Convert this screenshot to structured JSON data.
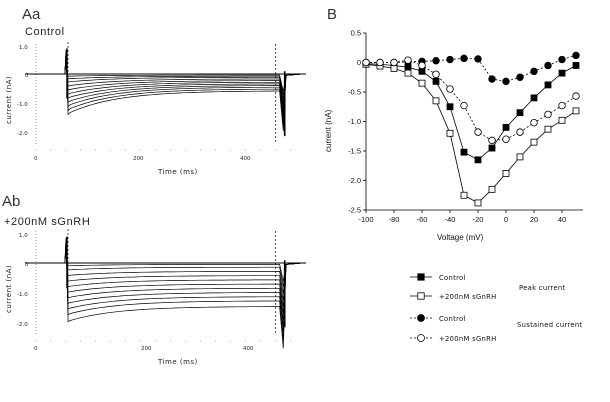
{
  "panels": {
    "aa": {
      "letter": "Aa",
      "title": "Control"
    },
    "ab": {
      "letter": "Ab",
      "title": "+200nM sGnRH"
    },
    "b": {
      "letter": "B"
    }
  },
  "chart_data": [
    {
      "id": "Aa",
      "type": "line",
      "title": "Control",
      "xlabel": "Time (ms)",
      "ylabel": "current (nA)",
      "xlim": [
        0,
        500
      ],
      "ylim": [
        -2.2,
        1.2
      ],
      "x_ticks": [
        "0",
        "200",
        "400"
      ],
      "y_ticks": [
        "1.0",
        "0",
        "-1.0",
        "-2.0"
      ],
      "description_steps": 11,
      "step_on_ms": 58,
      "step_off_ms": 462,
      "series": [
        {
          "peak": -0.08,
          "sustained": -0.04
        },
        {
          "peak": -0.18,
          "sustained": -0.08
        },
        {
          "peak": -0.3,
          "sustained": -0.12
        },
        {
          "peak": -0.45,
          "sustained": -0.18
        },
        {
          "peak": -0.6,
          "sustained": -0.24
        },
        {
          "peak": -0.75,
          "sustained": -0.3
        },
        {
          "peak": -0.9,
          "sustained": -0.36
        },
        {
          "peak": -1.05,
          "sustained": -0.42
        },
        {
          "peak": -1.2,
          "sustained": -0.48
        },
        {
          "peak": -1.35,
          "sustained": -0.55
        },
        {
          "peak": -1.5,
          "sustained": -0.62
        }
      ]
    },
    {
      "id": "Ab",
      "type": "line",
      "title": "+200nM sGnRH",
      "xlabel": "Time (ms)",
      "ylabel": "current (nA)",
      "xlim": [
        0,
        500
      ],
      "ylim": [
        -2.2,
        1.2
      ],
      "x_ticks": [
        "0",
        "200",
        "400"
      ],
      "y_ticks": [
        "1.0",
        "0",
        "-1.0",
        "-2.0"
      ],
      "step_on_ms": 58,
      "step_off_ms": 462,
      "series": [
        {
          "peak": -0.1,
          "sustained": -0.05
        },
        {
          "peak": -0.25,
          "sustained": -0.15
        },
        {
          "peak": -0.45,
          "sustained": -0.3
        },
        {
          "peak": -0.65,
          "sustained": -0.45
        },
        {
          "peak": -0.85,
          "sustained": -0.6
        },
        {
          "peak": -1.05,
          "sustained": -0.75
        },
        {
          "peak": -1.25,
          "sustained": -0.9
        },
        {
          "peak": -1.45,
          "sustained": -1.05
        },
        {
          "peak": -1.65,
          "sustained": -1.2
        },
        {
          "peak": -1.85,
          "sustained": -1.35
        },
        {
          "peak": -2.1,
          "sustained": -1.55
        }
      ]
    },
    {
      "id": "B",
      "type": "line",
      "title": "",
      "xlabel": "Voltage (mV)",
      "ylabel": "current (nA)",
      "xlim": [
        -100,
        55
      ],
      "ylim": [
        -2.5,
        0.5
      ],
      "x_ticks": [
        "-100",
        "-80",
        "-60",
        "-40",
        "-20",
        "0",
        "20",
        "40"
      ],
      "y_ticks": [
        "0.5",
        "0",
        "-0.5",
        "-1.0",
        "-1.5",
        "-2.0",
        "-2.5"
      ],
      "x": [
        -100,
        -90,
        -80,
        -70,
        -60,
        -50,
        -40,
        -30,
        -20,
        -10,
        0,
        10,
        20,
        30,
        40,
        50
      ],
      "series": [
        {
          "name": "Control",
          "group": "Peak current",
          "marker": "square-filled",
          "dashed": false,
          "values": [
            -0.02,
            -0.03,
            -0.05,
            -0.08,
            -0.15,
            -0.32,
            -0.75,
            -1.52,
            -1.65,
            -1.45,
            -1.1,
            -0.85,
            -0.6,
            -0.38,
            -0.18,
            -0.05
          ]
        },
        {
          "name": "+200nM sGnRH",
          "group": "Peak current",
          "marker": "square-open",
          "dashed": false,
          "values": [
            -0.03,
            -0.06,
            -0.1,
            -0.18,
            -0.35,
            -0.65,
            -1.2,
            -2.25,
            -2.38,
            -2.15,
            -1.88,
            -1.6,
            -1.35,
            -1.13,
            -0.98,
            -0.82
          ]
        },
        {
          "name": "Control",
          "group": "Sustained current",
          "marker": "circle-filled",
          "dashed": true,
          "values": [
            0.0,
            0.0,
            0.0,
            0.01,
            0.02,
            0.03,
            0.05,
            0.07,
            0.06,
            -0.28,
            -0.32,
            -0.25,
            -0.15,
            -0.05,
            0.05,
            0.12
          ]
        },
        {
          "name": "+200nM sGnRH",
          "group": "Sustained current",
          "marker": "circle-open",
          "dashed": true,
          "values": [
            0.0,
            0.0,
            0.0,
            0.04,
            -0.05,
            -0.2,
            -0.45,
            -0.73,
            -1.18,
            -1.32,
            -1.3,
            -1.18,
            -1.02,
            -0.88,
            -0.73,
            -0.57
          ]
        }
      ],
      "legend": {
        "entries": [
          "Control",
          "+200nM sGnRH",
          "Control",
          "+200nM sGnRH"
        ],
        "groups": [
          "Peak current",
          "Sustained current"
        ],
        "placement": "bottom-right"
      }
    }
  ]
}
